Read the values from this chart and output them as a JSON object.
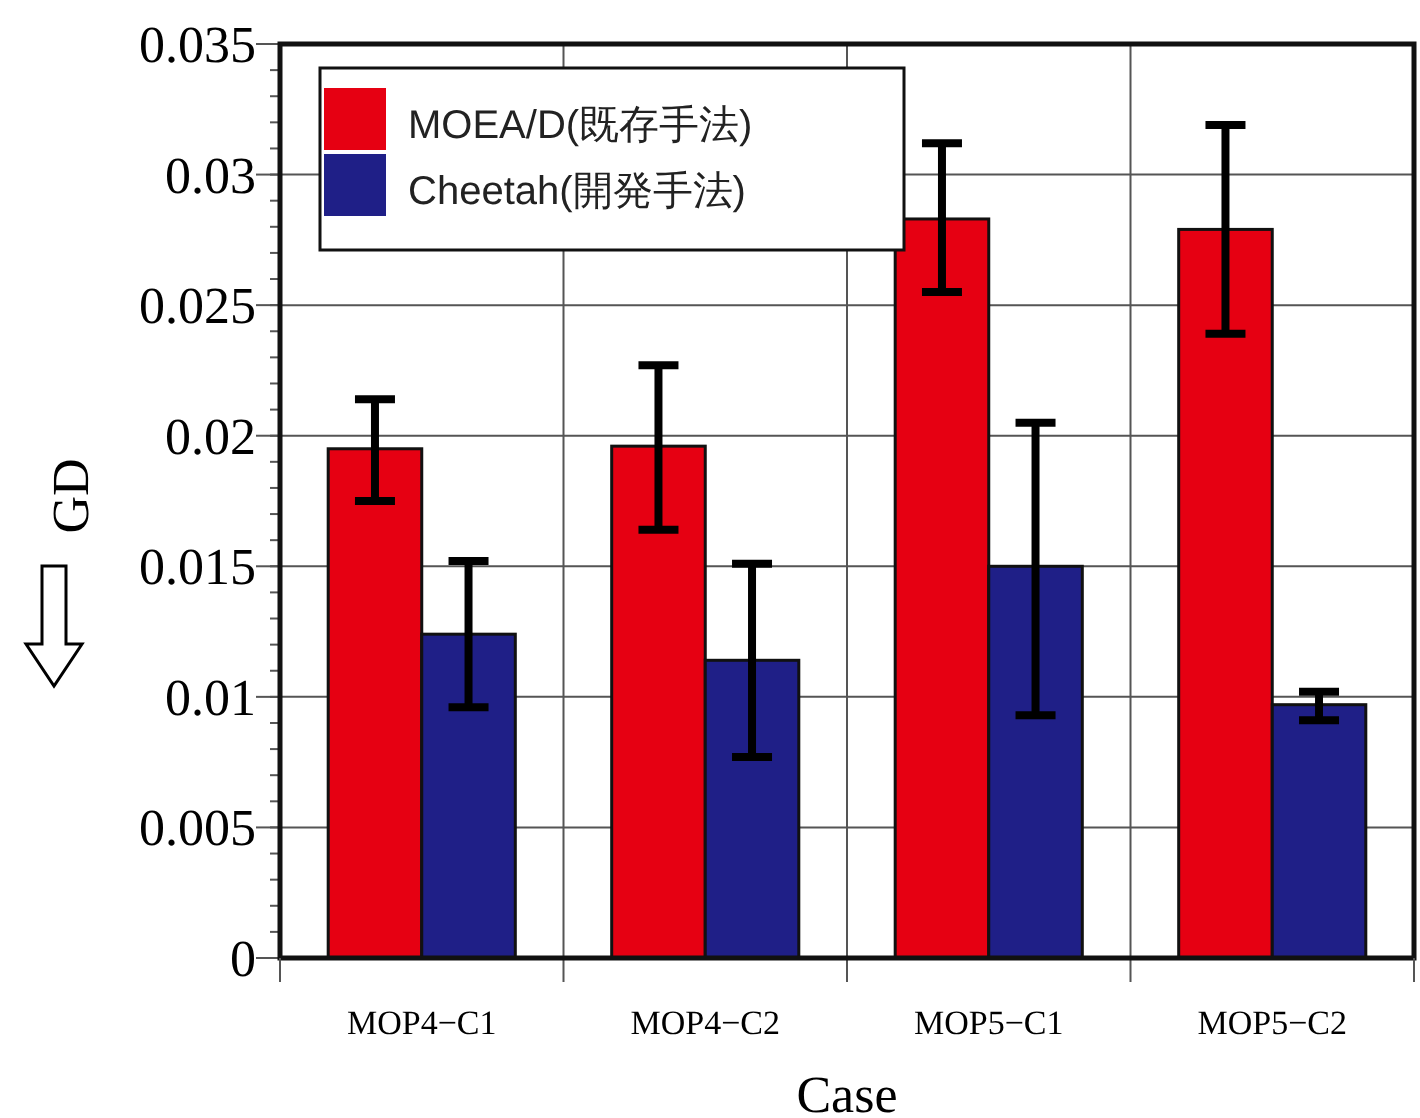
{
  "chart_data": {
    "type": "bar",
    "xlabel": "Case",
    "ylabel": "GD",
    "categories": [
      "MOP4−C1",
      "MOP4−C2",
      "MOP5−C1",
      "MOP5−C2"
    ],
    "series": [
      {
        "name": "MOEA/D(既存手法)",
        "color": "#e60012",
        "values": [
          0.0195,
          0.0196,
          0.0283,
          0.0279
        ],
        "errors": [
          [
            0.0175,
            0.0214
          ],
          [
            0.0164,
            0.0227
          ],
          [
            0.0255,
            0.0312
          ],
          [
            0.0239,
            0.0319
          ]
        ]
      },
      {
        "name": "Cheetah(開発手法)",
        "color": "#1f1f87",
        "values": [
          0.0124,
          0.0114,
          0.015,
          0.0097
        ],
        "errors": [
          [
            0.0096,
            0.0152
          ],
          [
            0.0077,
            0.0151
          ],
          [
            0.0093,
            0.0205
          ],
          [
            0.0091,
            0.0102
          ]
        ]
      }
    ],
    "ylim": [
      0,
      0.035
    ],
    "yticks": [
      0,
      0.005,
      0.01,
      0.015,
      0.02,
      0.025,
      0.03,
      0.035
    ],
    "grid": true,
    "legend": "top left"
  }
}
